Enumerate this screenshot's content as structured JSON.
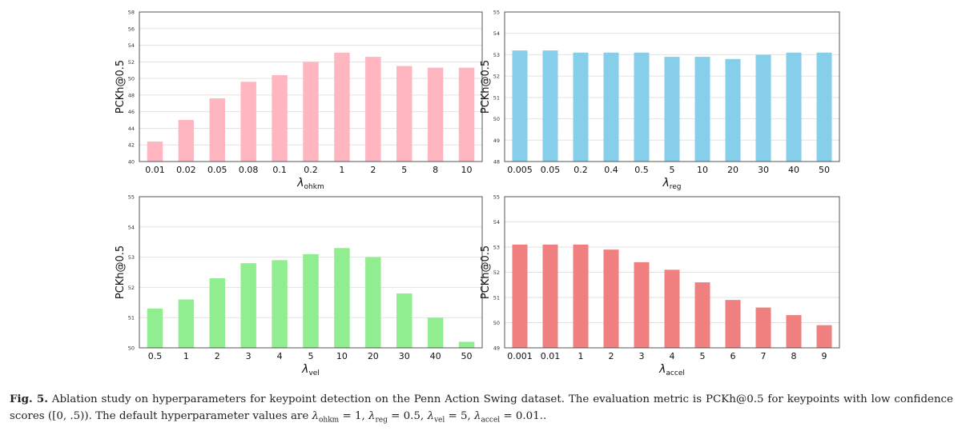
{
  "chart_data": [
    {
      "type": "bar",
      "color": "#FFB6C1",
      "ylabel": "PCKh@0.5",
      "xlabel_base": "λ",
      "xlabel_sub": "ohkm",
      "ylim": [
        40,
        58
      ],
      "yticks": [
        40,
        42,
        44,
        46,
        48,
        50,
        52,
        54,
        56,
        58
      ],
      "categories": [
        "0.01",
        "0.02",
        "0.05",
        "0.08",
        "0.1",
        "0.2",
        "1",
        "2",
        "5",
        "8",
        "10"
      ],
      "values": [
        42.4,
        45.0,
        47.6,
        49.6,
        50.4,
        52.0,
        53.1,
        52.6,
        51.5,
        51.3,
        51.3
      ]
    },
    {
      "type": "bar",
      "color": "#87CEEB",
      "ylabel": "PCKh@0.5",
      "xlabel_base": "λ",
      "xlabel_sub": "reg",
      "ylim": [
        48,
        55
      ],
      "yticks": [
        48,
        49,
        50,
        51,
        52,
        53,
        54,
        55
      ],
      "categories": [
        "0.005",
        "0.05",
        "0.2",
        "0.4",
        "0.5",
        "5",
        "10",
        "20",
        "30",
        "40",
        "50"
      ],
      "values": [
        53.2,
        53.2,
        53.1,
        53.1,
        53.1,
        52.9,
        52.9,
        52.8,
        53.0,
        53.1,
        53.1
      ]
    },
    {
      "type": "bar",
      "color": "#90EE90",
      "ylabel": "PCKh@0.5",
      "xlabel_base": "λ",
      "xlabel_sub": "vel",
      "ylim": [
        50,
        55
      ],
      "yticks": [
        50,
        51,
        52,
        53,
        54,
        55
      ],
      "categories": [
        "0.5",
        "1",
        "2",
        "3",
        "4",
        "5",
        "10",
        "20",
        "30",
        "40",
        "50"
      ],
      "values": [
        51.3,
        51.6,
        52.3,
        52.8,
        52.9,
        53.1,
        53.3,
        53.0,
        51.8,
        51.0,
        50.2
      ]
    },
    {
      "type": "bar",
      "color": "#F08080",
      "ylabel": "PCKh@0.5",
      "xlabel_base": "λ",
      "xlabel_sub": "accel",
      "ylim": [
        49,
        55
      ],
      "yticks": [
        49,
        50,
        51,
        52,
        53,
        54,
        55
      ],
      "categories": [
        "0.001",
        "0.01",
        "1",
        "2",
        "3",
        "4",
        "5",
        "6",
        "7",
        "8",
        "9"
      ],
      "values": [
        53.1,
        53.1,
        53.1,
        52.9,
        52.4,
        52.1,
        51.6,
        50.9,
        50.6,
        50.3,
        49.9
      ]
    }
  ],
  "caption": {
    "label": "Fig. 5.",
    "text": " Ablation study on hyperparameters for keypoint detection on the Penn Action Swing dataset. The evaluation metric is PCKh@0.5 for keypoints with low confidence scores ([0, .5)). The default hyperparameter values are ",
    "defaults": [
      {
        "sym": "λ",
        "sub": "ohkm",
        "val": "1"
      },
      {
        "sym": "λ",
        "sub": "reg",
        "val": "0.5"
      },
      {
        "sym": "λ",
        "sub": "vel",
        "val": "5"
      },
      {
        "sym": "λ",
        "sub": "accel",
        "val": "0.01"
      }
    ],
    "end": ".."
  }
}
